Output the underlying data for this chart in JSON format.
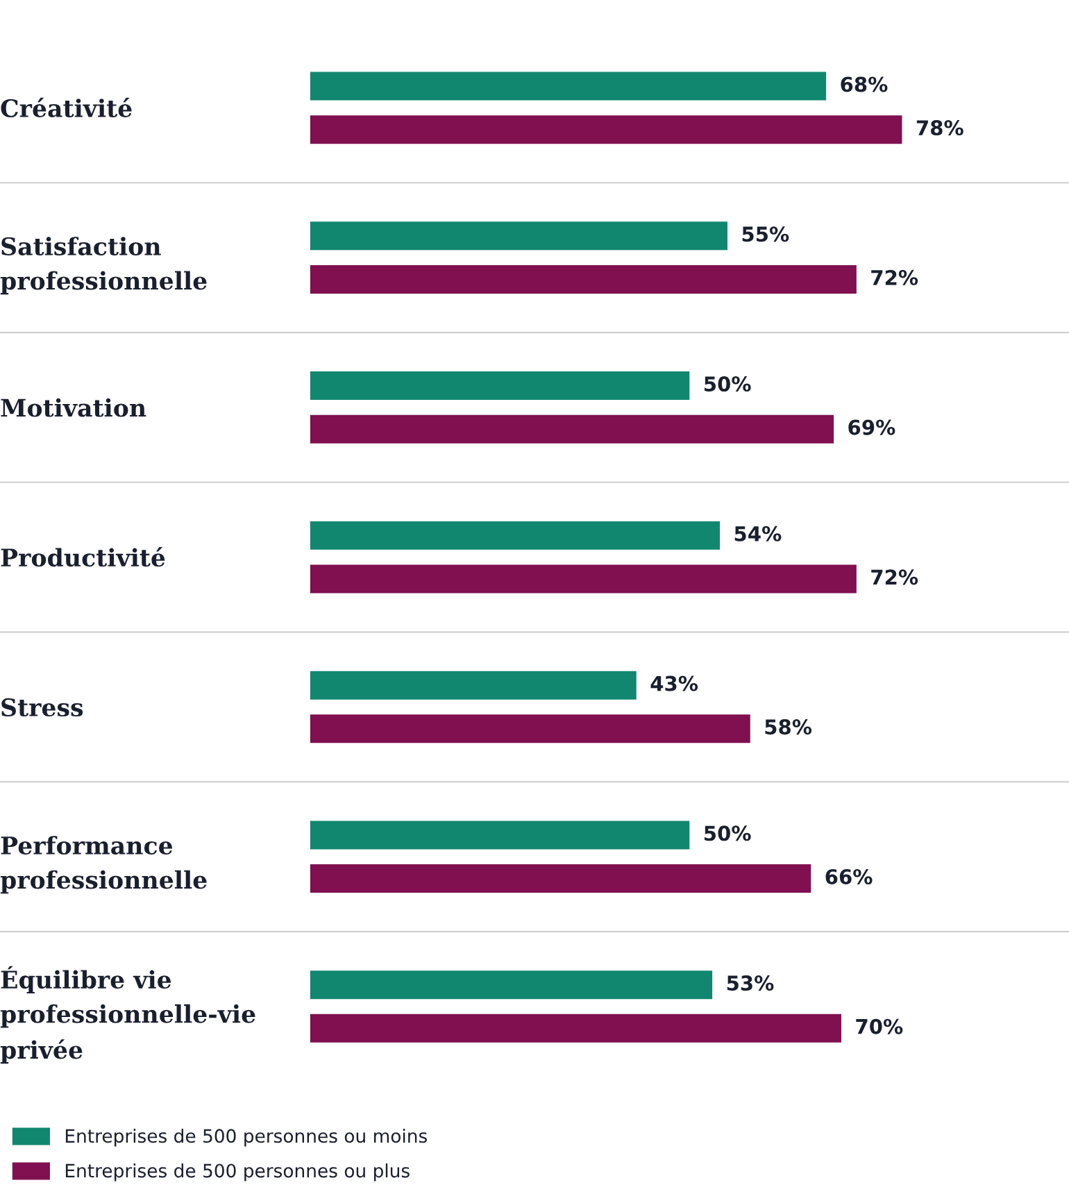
{
  "chart_data": {
    "type": "bar",
    "orientation": "horizontal",
    "categories": [
      "Créativité",
      "Satisfaction\nprofessionnelle",
      "Motivation",
      "Productivité",
      "Stress",
      "Performance\nprofessionnelle",
      "Équilibre vie\nprofessionnelle-vie\nprivée"
    ],
    "series": [
      {
        "name": "Entreprises de 500 personnes ou moins",
        "color": "#12876f",
        "values": [
          68,
          55,
          50,
          54,
          43,
          50,
          53
        ],
        "value_labels": [
          "68%",
          "55%",
          "50%",
          "54%",
          "43%",
          "50%",
          "53%"
        ]
      },
      {
        "name": "Entreprises de 500 personnes ou plus",
        "color": "#801050",
        "values": [
          78,
          72,
          69,
          72,
          58,
          66,
          70
        ],
        "value_labels": [
          "78%",
          "72%",
          "69%",
          "72%",
          "58%",
          "66%",
          "70%"
        ]
      }
    ],
    "xlim": [
      0,
      100
    ],
    "tick_labels": "y",
    "grid": false,
    "legend": "bottom"
  }
}
